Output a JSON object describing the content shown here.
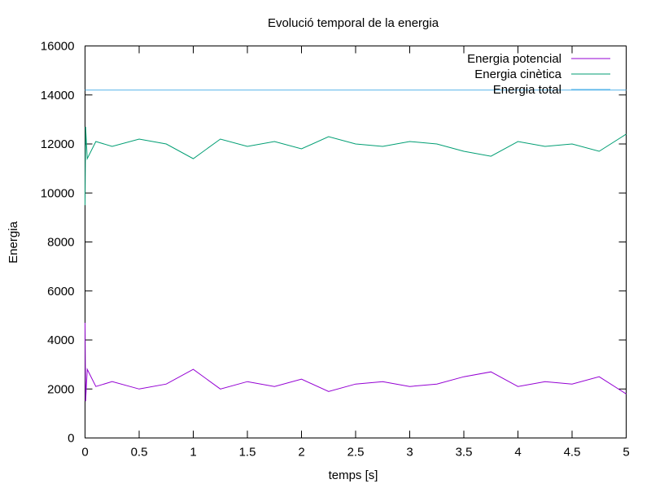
{
  "chart_data": {
    "type": "line",
    "title": "Evolució temporal de la energia",
    "xlabel": "temps [s]",
    "ylabel": "Energia",
    "xlim": [
      0,
      5
    ],
    "ylim": [
      0,
      16000
    ],
    "x_ticks": [
      0,
      0.5,
      1,
      1.5,
      2,
      2.5,
      3,
      3.5,
      4,
      4.5,
      5
    ],
    "y_ticks": [
      0,
      2000,
      4000,
      6000,
      8000,
      10000,
      12000,
      14000,
      16000
    ],
    "x_tick_labels": [
      "0",
      "0.5",
      "1",
      "1.5",
      "2",
      "2.5",
      "3",
      "3.5",
      "4",
      "4.5",
      "5"
    ],
    "y_tick_labels": [
      "0",
      "2000",
      "4000",
      "6000",
      "8000",
      "10000",
      "12000",
      "14000",
      "16000"
    ],
    "grid": false,
    "legend_position": "top-right",
    "series": [
      {
        "name": "Energia potencial",
        "color": "#9400d3",
        "x": [
          0,
          0.005,
          0.02,
          0.1,
          0.25,
          0.5,
          0.75,
          1.0,
          1.25,
          1.5,
          1.75,
          2.0,
          2.25,
          2.5,
          2.75,
          3.0,
          3.25,
          3.5,
          3.75,
          4.0,
          4.25,
          4.5,
          4.75,
          5.0
        ],
        "y": [
          4700,
          1500,
          2800,
          2100,
          2300,
          2000,
          2200,
          2800,
          2000,
          2300,
          2100,
          2400,
          1900,
          2200,
          2300,
          2100,
          2200,
          2500,
          2700,
          2100,
          2300,
          2200,
          2500,
          1800
        ]
      },
      {
        "name": "Energia cinètica",
        "color": "#009e73",
        "x": [
          0,
          0.005,
          0.02,
          0.1,
          0.25,
          0.5,
          0.75,
          1.0,
          1.25,
          1.5,
          1.75,
          2.0,
          2.25,
          2.5,
          2.75,
          3.0,
          3.25,
          3.5,
          3.75,
          4.0,
          4.25,
          4.5,
          4.75,
          5.0
        ],
        "y": [
          9500,
          12700,
          11400,
          12100,
          11900,
          12200,
          12000,
          11400,
          12200,
          11900,
          12100,
          11800,
          12300,
          12000,
          11900,
          12100,
          12000,
          11700,
          11500,
          12100,
          11900,
          12000,
          11700,
          12400
        ]
      },
      {
        "name": "Energia total",
        "color": "#56b4e9",
        "x": [
          0,
          5
        ],
        "y": [
          14200,
          14200
        ]
      }
    ]
  }
}
